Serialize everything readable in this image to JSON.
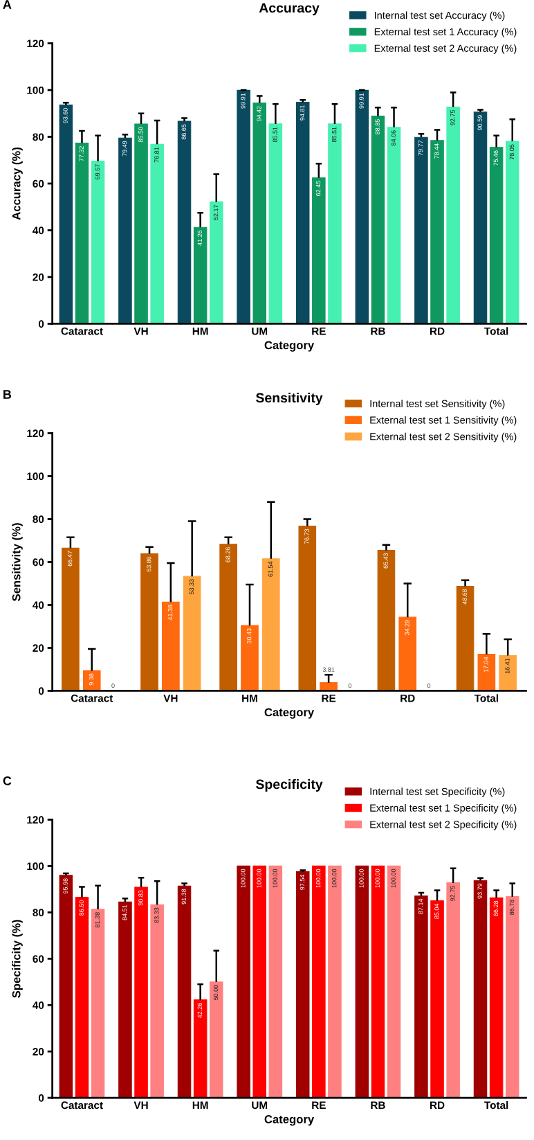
{
  "chart_data": [
    {
      "type": "bar",
      "title": "Accuracy",
      "xlabel": "Category",
      "ylabel": "Accuracy (%)",
      "annotations": [
        "A"
      ],
      "categories": [
        "Cataract",
        "VH",
        "HM",
        "UM",
        "RE",
        "RB",
        "RD",
        "Total"
      ],
      "ylim": [
        0,
        120
      ],
      "yticks": [
        0,
        20,
        40,
        60,
        80,
        100,
        120
      ],
      "grid": false,
      "legend": "top right",
      "series": [
        {
          "name": "Internal test set Accuracy (%)",
          "color": "#0b4a5e",
          "values": [
            93.6,
            79.49,
            86.65,
            99.91,
            94.81,
            99.91,
            79.77,
            90.59
          ],
          "value_labels": [
            "93.60",
            "79.49",
            "86.65",
            "99.91",
            "94.81",
            "99.91",
            "79.77",
            "90.59"
          ],
          "errors": [
            [
              93.6,
              94.6
            ],
            [
              79.49,
              81.0
            ],
            [
              86.65,
              88.0
            ],
            [
              99.91,
              100.0
            ],
            [
              94.81,
              95.8
            ],
            [
              99.91,
              100.0
            ],
            [
              79.77,
              81.3
            ],
            [
              90.59,
              91.6
            ]
          ]
        },
        {
          "name": "External test set 1 Accuracy (%)",
          "color": "#0f9960",
          "values": [
            77.32,
            85.5,
            41.26,
            94.42,
            62.45,
            88.85,
            78.44,
            75.46
          ],
          "value_labels": [
            "77.32",
            "85.50",
            "41.26",
            "94.42",
            "62.45",
            "88.85",
            "78.44",
            "75.46"
          ],
          "errors": [
            [
              77.32,
              82.5
            ],
            [
              85.5,
              90.0
            ],
            [
              41.26,
              47.5
            ],
            [
              94.42,
              97.5
            ],
            [
              62.45,
              68.5
            ],
            [
              88.85,
              92.5
            ],
            [
              78.44,
              83.0
            ],
            [
              75.46,
              80.5
            ]
          ]
        },
        {
          "name": "External test set 2 Accuracy (%)",
          "color": "#45f0b0",
          "values": [
            69.57,
            76.81,
            52.17,
            85.51,
            85.51,
            84.06,
            92.75,
            78.05
          ],
          "value_labels": [
            "69.57",
            "76.81",
            "52.17",
            "85.51",
            "85.51",
            "84.06",
            "92.75",
            "78.05"
          ],
          "errors": [
            [
              69.57,
              80.5
            ],
            [
              76.81,
              87.0
            ],
            [
              52.17,
              64.0
            ],
            [
              85.51,
              94.0
            ],
            [
              85.51,
              94.0
            ],
            [
              84.06,
              92.5
            ],
            [
              92.75,
              99.0
            ],
            [
              78.05,
              87.5
            ]
          ]
        }
      ]
    },
    {
      "type": "bar",
      "title": "Sensitivity",
      "xlabel": "Category",
      "ylabel": "Sensitivity (%)",
      "annotations": [
        "B"
      ],
      "categories": [
        "Cataract",
        "VH",
        "HM",
        "RE",
        "RD",
        "Total"
      ],
      "ylim": [
        0,
        120
      ],
      "yticks": [
        0,
        20,
        40,
        60,
        80,
        100,
        120
      ],
      "grid": false,
      "legend": "top right",
      "series": [
        {
          "name": "Internal test set Sensitivity (%)",
          "color": "#c15f00",
          "values": [
            66.47,
            63.86,
            68.26,
            76.73,
            65.43,
            48.68
          ],
          "value_labels": [
            "66.47",
            "63.86",
            "68.26",
            "76.73",
            "65.43",
            "48.68"
          ],
          "errors": [
            [
              66.47,
              71.5
            ],
            [
              63.86,
              67.0
            ],
            [
              68.26,
              71.5
            ],
            [
              76.73,
              80.0
            ],
            [
              65.43,
              68.0
            ],
            [
              48.68,
              51.5
            ]
          ]
        },
        {
          "name": "External test set 1 Sensitivity (%)",
          "color": "#ff6a0e",
          "values": [
            9.38,
            41.38,
            30.43,
            3.81,
            34.29,
            17.04
          ],
          "value_labels": [
            "9.38",
            "41.38",
            "30.43",
            "3.81",
            "34.29",
            "17.04"
          ],
          "errors": [
            [
              9.38,
              19.5
            ],
            [
              41.38,
              59.5
            ],
            [
              30.43,
              49.5
            ],
            [
              3.81,
              7.5
            ],
            [
              34.29,
              50.0
            ],
            [
              17.04,
              26.5
            ]
          ]
        },
        {
          "name": "External test set 2 Sensitivity (%)",
          "color": "#ffa540",
          "values": [
            0,
            53.33,
            61.54,
            0,
            0,
            16.41
          ],
          "value_labels": [
            "0",
            "53.33",
            "61.54",
            "0",
            "0",
            "16.41"
          ],
          "errors": [
            null,
            [
              53.33,
              79.0
            ],
            [
              61.54,
              88.0
            ],
            null,
            null,
            [
              16.41,
              24.0
            ]
          ]
        }
      ]
    },
    {
      "type": "bar",
      "title": "Specificity",
      "xlabel": "Category",
      "ylabel": "Specificity (%)",
      "annotations": [
        "C"
      ],
      "categories": [
        "Cataract",
        "VH",
        "HM",
        "UM",
        "RE",
        "RB",
        "RD",
        "Total"
      ],
      "ylim": [
        0,
        120
      ],
      "yticks": [
        0,
        20,
        40,
        60,
        80,
        100,
        120
      ],
      "grid": false,
      "legend": "top right",
      "series": [
        {
          "name": "Internal test set Specificity (%)",
          "color": "#a00000",
          "values": [
            95.98,
            84.51,
            91.38,
            100.0,
            97.54,
            100.0,
            87.14,
            93.79
          ],
          "value_labels": [
            "95.98",
            "84.51",
            "91.38",
            "100.00",
            "97.54",
            "100.00",
            "87.14",
            "93.79"
          ],
          "errors": [
            [
              95.98,
              96.8
            ],
            [
              84.51,
              86.0
            ],
            [
              91.38,
              92.5
            ],
            null,
            [
              97.54,
              98.2
            ],
            null,
            [
              87.14,
              88.5
            ],
            [
              93.79,
              94.8
            ]
          ]
        },
        {
          "name": "External test set 1 Specificity (%)",
          "color": "#ff0000",
          "values": [
            86.5,
            90.83,
            42.26,
            100.0,
            100.0,
            100.0,
            85.04,
            86.28
          ],
          "value_labels": [
            "86.50",
            "90.83",
            "42.26",
            "100.00",
            "100.00",
            "100.00",
            "85.04",
            "86.28"
          ],
          "errors": [
            [
              86.5,
              91.0
            ],
            [
              90.83,
              95.0
            ],
            [
              42.26,
              49.0
            ],
            null,
            null,
            null,
            [
              85.04,
              89.5
            ],
            [
              86.28,
              89.5
            ]
          ]
        },
        {
          "name": "External test set 2 Specificity (%)",
          "color": "#ff8080",
          "values": [
            81.38,
            83.33,
            50.0,
            100.0,
            100.0,
            100.0,
            92.75,
            86.78
          ],
          "value_labels": [
            "81.38",
            "83.33",
            "50.00",
            "100.00",
            "100.00",
            "100.00",
            "92.75",
            "86.78"
          ],
          "errors": [
            [
              81.38,
              91.5
            ],
            [
              83.33,
              93.5
            ],
            [
              50.0,
              63.5
            ],
            null,
            null,
            null,
            [
              92.75,
              99.0
            ],
            [
              86.78,
              92.5
            ]
          ]
        }
      ]
    }
  ]
}
